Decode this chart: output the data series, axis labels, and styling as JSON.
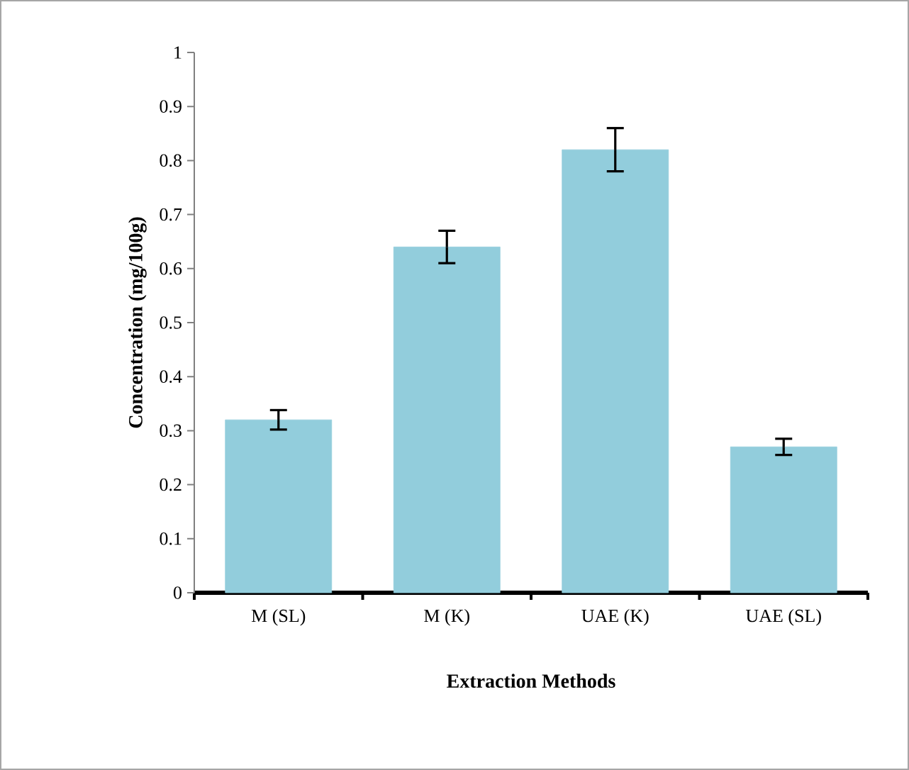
{
  "chart_data": {
    "type": "bar",
    "xlabel": "Extraction Methods",
    "ylabel": "Concentration (mg/100g)",
    "categories": [
      "M (SL)",
      "M (K)",
      "UAE (K)",
      "UAE (SL)"
    ],
    "values": [
      0.32,
      0.64,
      0.82,
      0.27
    ],
    "errors": [
      0.018,
      0.03,
      0.04,
      0.015
    ],
    "color": "#92cddc",
    "ylim": [
      0,
      1
    ],
    "yticks": [
      0,
      0.1,
      0.2,
      0.3,
      0.4,
      0.5,
      0.6,
      0.7,
      0.8,
      0.9,
      1
    ],
    "grid": false
  }
}
